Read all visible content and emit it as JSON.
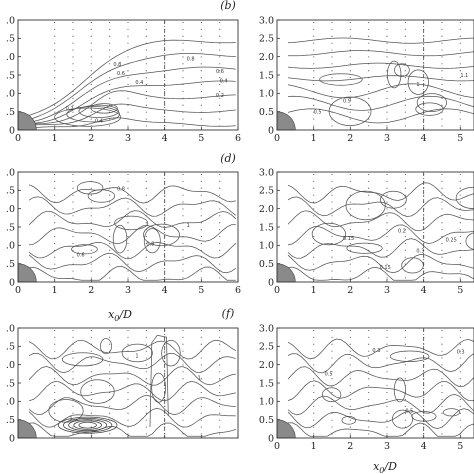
{
  "chart_data": {
    "type": "contour",
    "panel_labels": [
      "(b)",
      "(d)",
      "(f)"
    ],
    "xlabel": "x0/D",
    "xlabel_parts": {
      "base": "x",
      "sub": "0",
      "rest": "/D"
    },
    "xlim": [
      0,
      6
    ],
    "ylim": [
      0,
      3.0
    ],
    "x_ticks": [
      "0",
      "1",
      "2",
      "3",
      "4",
      "5",
      "6"
    ],
    "y_ticks": [
      "0",
      "0.5",
      "1.0",
      "1.5",
      "2.0",
      "2.5",
      "3.0"
    ],
    "y_ticks_cropped_left": [
      "0",
      ".5",
      ".0",
      ".5",
      ".0",
      ".5",
      ".0"
    ],
    "dashed_line_x": 4,
    "cylinder_radius": 0.5,
    "traverse_x_stations": [
      1,
      1.5,
      2,
      2.5,
      3,
      3.5,
      4,
      4.5,
      5,
      5.5
    ],
    "contour_labels": [
      {
        "panel": 0,
        "text": "0.8",
        "x": 2.6,
        "y": 1.75
      },
      {
        "panel": 0,
        "text": "0.6",
        "x": 2.7,
        "y": 1.5
      },
      {
        "panel": 0,
        "text": "0.4",
        "x": 3.2,
        "y": 1.25
      },
      {
        "panel": 0,
        "text": "0.2",
        "x": 1.3,
        "y": 0.55
      },
      {
        "panel": 0,
        "text": "0.8",
        "x": 4.6,
        "y": 1.9
      },
      {
        "panel": 0,
        "text": "0.6",
        "x": 5.4,
        "y": 1.55
      },
      {
        "panel": 0,
        "text": "0.4",
        "x": 5.5,
        "y": 1.3
      },
      {
        "panel": 0,
        "text": "0.2",
        "x": 5.4,
        "y": 0.9
      },
      {
        "panel": 0,
        "text": "0.4",
        "x": 2.1,
        "y": 0.2
      },
      {
        "panel": 1,
        "text": "1.2",
        "x": 5.6,
        "y": 1.9
      },
      {
        "panel": 1,
        "text": "1.1",
        "x": 5.0,
        "y": 1.45
      },
      {
        "panel": 1,
        "text": "1",
        "x": 3.8,
        "y": 1.2
      },
      {
        "panel": 1,
        "text": "0.9",
        "x": 1.8,
        "y": 0.75
      },
      {
        "panel": 1,
        "text": "0.5",
        "x": 1.0,
        "y": 0.45
      },
      {
        "panel": 2,
        "text": "0.8",
        "x": 2.7,
        "y": 2.5
      },
      {
        "panel": 2,
        "text": "0.6",
        "x": 1.6,
        "y": 0.7
      },
      {
        "panel": 2,
        "text": "0.8",
        "x": 3.5,
        "y": 1.0
      },
      {
        "panel": 2,
        "text": "1",
        "x": 4.6,
        "y": 1.5
      },
      {
        "panel": 3,
        "text": "0.15",
        "x": 1.8,
        "y": 1.15
      },
      {
        "panel": 3,
        "text": "0.2",
        "x": 3.3,
        "y": 1.35
      },
      {
        "panel": 3,
        "text": "0.25",
        "x": 4.6,
        "y": 1.1
      },
      {
        "panel": 3,
        "text": "0.3",
        "x": 3.8,
        "y": 0.8
      },
      {
        "panel": 3,
        "text": "0.15",
        "x": 2.8,
        "y": 0.35
      },
      {
        "panel": 4,
        "text": "1",
        "x": 3.2,
        "y": 2.2
      },
      {
        "panel": 4,
        "text": "1",
        "x": 1.4,
        "y": 0.5
      },
      {
        "panel": 4,
        "text": "1",
        "x": 4.9,
        "y": 1.6
      },
      {
        "panel": 5,
        "text": "0.3",
        "x": 2.6,
        "y": 2.35
      },
      {
        "panel": 5,
        "text": "0.5",
        "x": 1.3,
        "y": 1.7
      },
      {
        "panel": 5,
        "text": "0.5",
        "x": 3.5,
        "y": 0.7
      },
      {
        "panel": 5,
        "text": "0.3",
        "x": 4.9,
        "y": 2.3
      }
    ]
  }
}
